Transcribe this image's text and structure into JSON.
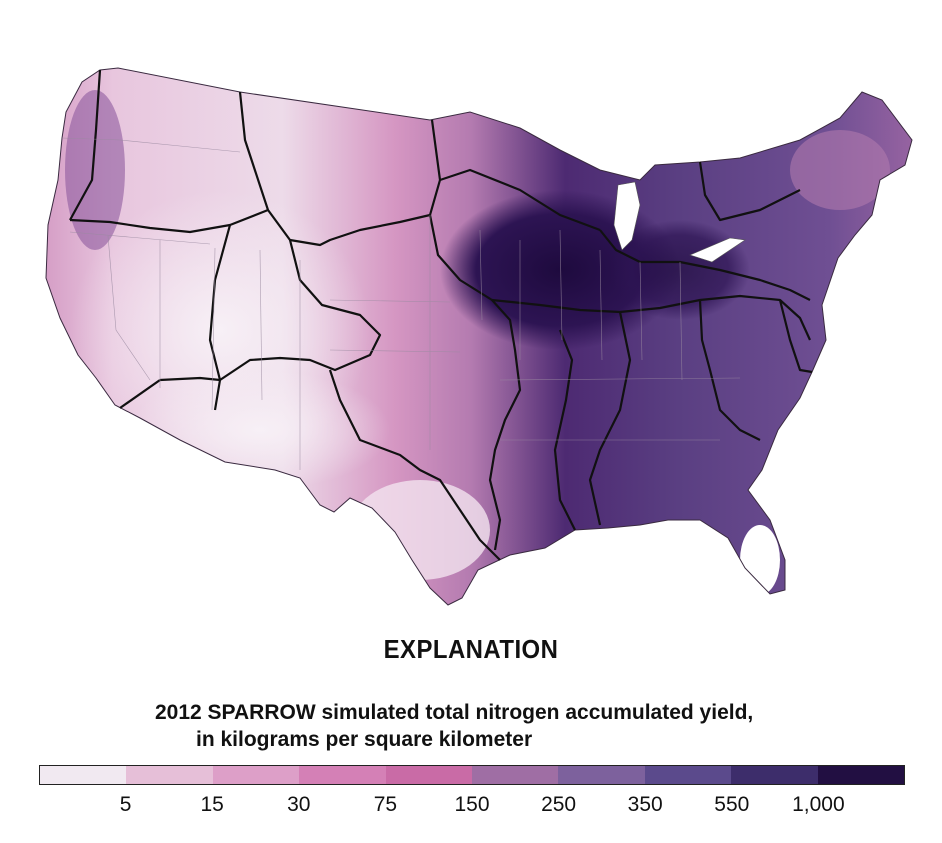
{
  "explanation_title": "EXPLANATION",
  "legend": {
    "title_line1": "2012 SPARROW simulated total nitrogen accumulated yield,",
    "title_line2": "in kilograms per square kilometer",
    "colors": [
      "#f1e9f1",
      "#e6bfd8",
      "#dd9fc8",
      "#d480b6",
      "#c96ba6",
      "#9f6ea4",
      "#7d619d",
      "#5b4a8c",
      "#3d2d6b",
      "#220f42"
    ],
    "breaks": [
      "5",
      "15",
      "30",
      "75",
      "150",
      "250",
      "350",
      "550",
      "1,000"
    ]
  }
}
